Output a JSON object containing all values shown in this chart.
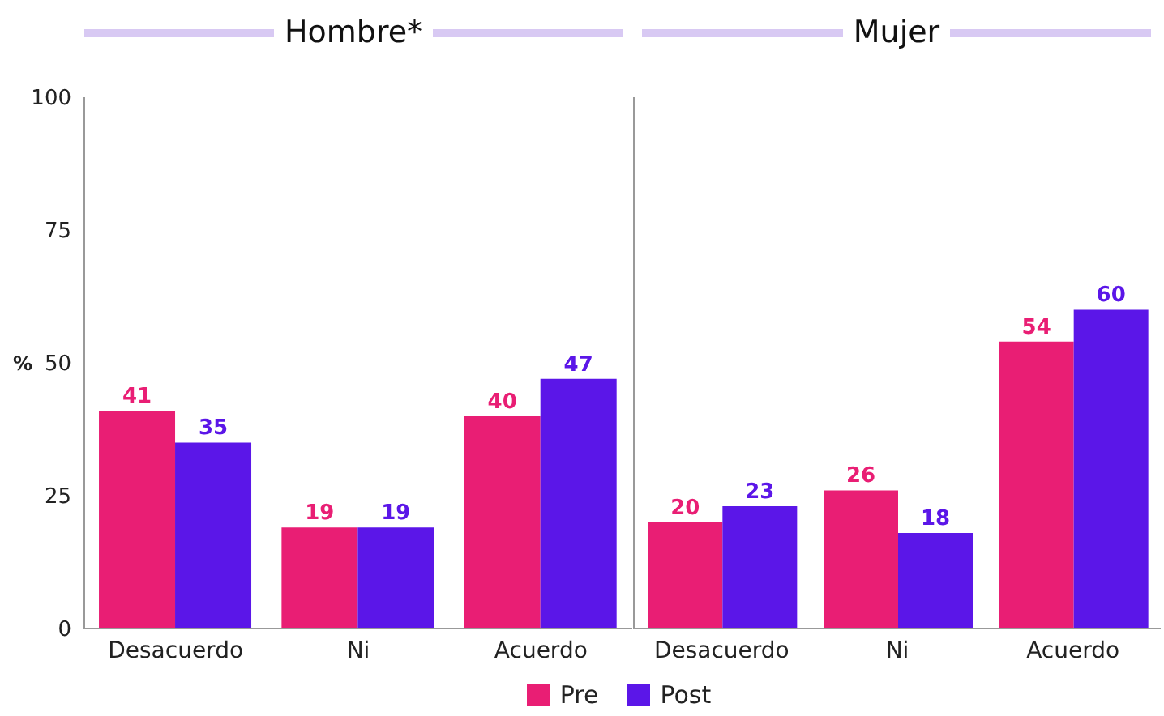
{
  "chart_data": [
    {
      "type": "bar",
      "title": "Hombre*",
      "ylabel": "%",
      "categories": [
        "Desacuerdo",
        "Ni",
        "Acuerdo"
      ],
      "series": [
        {
          "name": "Pre",
          "color": "#e91e74",
          "values": [
            41,
            19,
            40
          ]
        },
        {
          "name": "Post",
          "color": "#5b16e8",
          "values": [
            35,
            19,
            47
          ]
        }
      ],
      "ylim": [
        0,
        100
      ],
      "yticks": [
        0,
        25,
        50,
        75,
        100
      ],
      "grid": false,
      "data_labels": true,
      "legend": "bottom"
    },
    {
      "type": "bar",
      "title": "Mujer",
      "categories": [
        "Desacuerdo",
        "Ni",
        "Acuerdo"
      ],
      "series": [
        {
          "color": "#e91e74",
          "values": [
            20,
            26,
            54
          ]
        },
        {
          "color": "#5b16e8",
          "values": [
            23,
            18,
            60
          ]
        }
      ],
      "ylim": [
        0,
        100
      ],
      "yticks": [
        0,
        25,
        50,
        75,
        100
      ],
      "grid": false,
      "data_labels": true,
      "tick_labels": "x"
    }
  ]
}
